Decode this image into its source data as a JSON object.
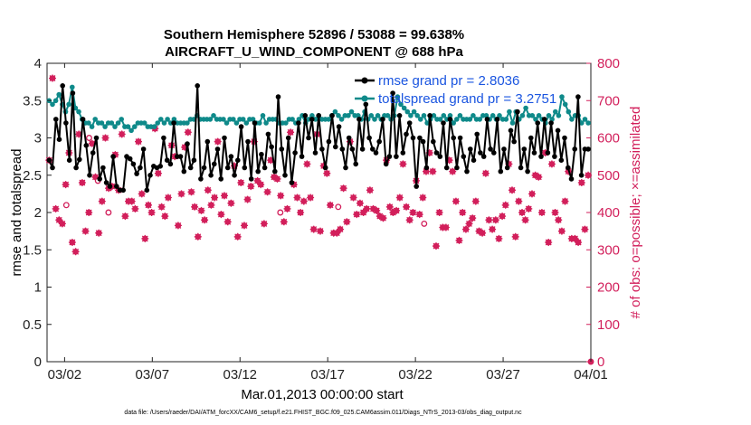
{
  "chart_data": {
    "type": "line",
    "title_line1": "Southern Hemisphere 52896 / 53088 = 99.638%",
    "title_line2": "AIRCRAFT_U_WIND_COMPONENT @ 688 hPa",
    "xlabel": "Mar.01,2013 00:00:00 start",
    "ylabel_left": "rmse and totalspread",
    "ylabel_right": "# of obs: o=possible; ×=assimilated",
    "footer": "data file: /Users/raeder/DAI/ATM_forcXX/CAM6_setup/f.e21.FHIST_BGC.f09_025.CAM6assim.011/Diags_NTrS_2013-03/obs_diag_output.nc",
    "x_range": [
      0,
      31
    ],
    "x_ticks": [
      {
        "x": 1,
        "label": "03/02"
      },
      {
        "x": 6,
        "label": "03/07"
      },
      {
        "x": 11,
        "label": "03/12"
      },
      {
        "x": 16,
        "label": "03/17"
      },
      {
        "x": 21,
        "label": "03/22"
      },
      {
        "x": 26,
        "label": "03/27"
      },
      {
        "x": 31,
        "label": "04/01"
      }
    ],
    "ylim_left": [
      0,
      4
    ],
    "yticks_left": [
      "0",
      "0.5",
      "1",
      "1.5",
      "2",
      "2.5",
      "3",
      "3.5",
      "4"
    ],
    "ylim_right": [
      0,
      800
    ],
    "yticks_right": [
      "0",
      "100",
      "200",
      "300",
      "400",
      "500",
      "600",
      "700",
      "800"
    ],
    "legend": [
      {
        "label": "rmse  grand pr = 2.8036",
        "color": "#000000"
      },
      {
        "label": "totalspread grand pr = 3.2751",
        "color": "#0f8a8a"
      }
    ],
    "series": [
      {
        "name": "rmse  grand pr = 2.8036",
        "color": "#000000",
        "axis": "left",
        "values": [
          2.7,
          2.6,
          3.25,
          2.98,
          3.7,
          3.2,
          2.7,
          3.6,
          2.6,
          2.71,
          3.25,
          2.9,
          2.5,
          2.8,
          3.0,
          2.45,
          2.6,
          2.4,
          2.35,
          2.75,
          2.35,
          2.3,
          2.3,
          2.75,
          2.72,
          2.65,
          2.52,
          2.6,
          2.85,
          2.3,
          2.5,
          2.62,
          2.6,
          2.62,
          3.0,
          2.7,
          2.65,
          3.2,
          2.75,
          2.75,
          2.55,
          2.92,
          2.6,
          2.7,
          3.7,
          2.45,
          2.6,
          2.95,
          2.5,
          2.65,
          2.85,
          2.45,
          3.0,
          2.6,
          2.75,
          2.5,
          2.7,
          3.15,
          2.6,
          2.95,
          2.45,
          3.2,
          2.55,
          2.78,
          2.6,
          3.05,
          2.88,
          2.55,
          3.55,
          2.85,
          2.5,
          3.0,
          2.4,
          2.8,
          3.2,
          2.75,
          3.3,
          3.0,
          3.25,
          2.8,
          3.3,
          2.85,
          2.6,
          2.95,
          3.3,
          2.88,
          3.15,
          2.85,
          2.6,
          3.0,
          2.85,
          2.65,
          3.25,
          2.85,
          3.45,
          3.0,
          2.85,
          2.8,
          2.95,
          3.25,
          2.65,
          2.75,
          3.6,
          2.75,
          3.3,
          2.8,
          3.05,
          3.2,
          3.0,
          2.35,
          3.0,
          2.95,
          2.6,
          3.3,
          2.95,
          2.8,
          2.75,
          3.2,
          2.6,
          3.25,
          3.0,
          2.6,
          3.0,
          2.75,
          2.55,
          2.85,
          2.7,
          3.05,
          2.8,
          2.75,
          3.25,
          2.85,
          2.8,
          3.25,
          2.55,
          2.85,
          2.6,
          3.1,
          2.95,
          3.35,
          2.6,
          2.85,
          2.55,
          3.0,
          2.8,
          3.2,
          2.75,
          3.25,
          2.8,
          3.2,
          2.75,
          3.1,
          2.7,
          3.0,
          2.6,
          2.45,
          2.85,
          3.55,
          2.5,
          2.85,
          2.85
        ]
      },
      {
        "name": "totalspread grand pr = 3.2751",
        "color": "#0f8a8a",
        "axis": "left",
        "values": [
          3.5,
          3.45,
          3.5,
          3.58,
          3.45,
          3.35,
          3.45,
          3.68,
          3.4,
          3.35,
          3.25,
          3.2,
          3.2,
          3.15,
          3.25,
          3.2,
          3.2,
          3.15,
          3.2,
          3.2,
          3.15,
          3.2,
          3.25,
          3.15,
          3.15,
          3.1,
          3.15,
          3.2,
          3.2,
          3.2,
          3.15,
          3.15,
          3.15,
          3.2,
          3.25,
          3.2,
          3.25,
          3.2,
          3.25,
          3.2,
          3.2,
          3.2,
          3.2,
          3.25,
          3.25,
          3.3,
          3.25,
          3.25,
          3.25,
          3.25,
          3.3,
          3.25,
          3.25,
          3.25,
          3.2,
          3.25,
          3.25,
          3.2,
          3.25,
          3.25,
          3.2,
          3.25,
          3.25,
          3.2,
          3.2,
          3.3,
          3.2,
          3.25,
          3.25,
          3.25,
          3.2,
          3.2,
          3.2,
          3.25,
          3.25,
          3.2,
          3.25,
          3.3,
          3.2,
          3.25,
          3.3,
          3.25,
          3.3,
          3.25,
          3.25,
          3.25,
          3.3,
          3.35,
          3.3,
          3.25,
          3.3,
          3.3,
          3.35,
          3.3,
          3.3,
          3.25,
          3.35,
          3.25,
          3.3,
          3.25,
          3.3,
          3.25,
          3.3,
          3.3,
          3.25,
          3.3,
          3.55,
          3.45,
          3.4,
          3.35,
          3.3,
          3.35,
          3.3,
          3.25,
          3.3,
          3.2,
          3.25,
          3.3,
          3.25,
          3.25,
          3.3,
          3.25,
          3.3,
          3.2,
          3.25,
          3.3,
          3.25,
          3.25,
          3.25,
          3.3,
          3.25,
          3.25,
          3.3,
          3.3,
          3.25,
          3.3,
          3.25,
          3.3,
          3.25,
          3.25,
          3.35,
          3.2,
          3.35,
          3.25,
          3.3,
          3.4,
          3.3,
          3.3,
          3.25,
          3.3,
          3.25,
          3.2,
          3.3,
          3.25,
          3.35,
          3.3,
          3.55,
          3.45,
          3.35,
          3.25,
          3.3,
          3.3,
          3.2,
          3.25,
          3.2
        ]
      },
      {
        "name": "obs assimilated",
        "color": "#d21f5b",
        "axis": "right",
        "values": [
          540,
          760,
          410,
          380,
          370,
          475,
          560,
          320,
          295,
          610,
          480,
          350,
          400,
          585,
          495,
          345,
          430,
          600,
          465,
          470,
          555,
          460,
          610,
          390,
          430,
          430,
          410,
          590,
          450,
          330,
          420,
          400,
          625,
          505,
          415,
          390,
          440,
          580,
          550,
          365,
          450,
          575,
          615,
          455,
          415,
          335,
          405,
          380,
          460,
          420,
          440,
          590,
          395,
          445,
          375,
          425,
          525,
          335,
          480,
          365,
          435,
          470,
          590,
          485,
          475,
          370,
          455,
          540,
          495,
          490,
          445,
          375,
          410,
          615,
          475,
          440,
          400,
          430,
          530,
          440,
          355,
          610,
          350,
          525,
          505,
          420,
          345,
          345,
          355,
          465,
          375,
          590,
          440,
          395,
          425,
          400,
          410,
          460,
          410,
          405,
          390,
          385,
          540,
          415,
          400,
          405,
          440,
          530,
          415,
          380,
          400,
          485,
          395,
          440,
          510,
          560,
          510,
          310,
          400,
          360,
          360,
          540,
          510,
          430,
          325,
          400,
          355,
          370,
          385,
          430,
          350,
          345,
          505,
          380,
          355,
          380,
          330,
          390,
          420,
          530,
          460,
          335,
          430,
          400,
          380,
          410,
          450,
          500,
          495,
          400,
          560,
          320,
          530,
          400,
          380,
          350,
          430,
          510,
          330,
          330,
          320,
          480,
          355,
          500
        ]
      }
    ],
    "possible_markers": [
      {
        "x": 1.1,
        "y": 420
      },
      {
        "x": 2.4,
        "y": 600
      },
      {
        "x": 2.9,
        "y": 485
      },
      {
        "x": 3.5,
        "y": 400
      },
      {
        "x": 13.3,
        "y": 400
      },
      {
        "x": 16.6,
        "y": 415
      },
      {
        "x": 21.5,
        "y": 370
      },
      {
        "x": 31.0,
        "y": 0
      }
    ]
  }
}
